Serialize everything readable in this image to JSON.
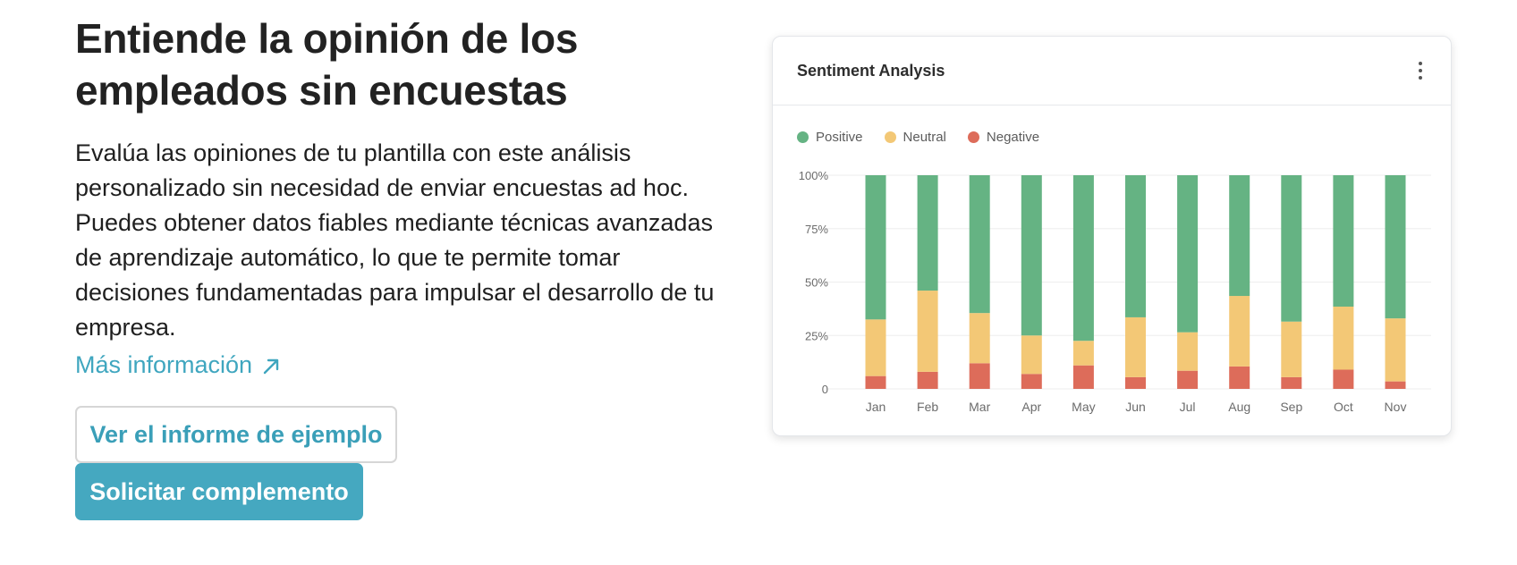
{
  "hero": {
    "title_line1": "Entiende la opinión de los",
    "title_line2": "empleados sin encuestas",
    "description": "Evalúa las opiniones de tu plantilla con este análisis personalizado sin necesidad de enviar encuestas ad hoc. Puedes obtener datos fiables mediante técnicas avanzadas de aprendizaje automático, lo que te permite tomar decisiones fundamentadas para impulsar el desarrollo de tu empresa.",
    "more_link": "Más información",
    "secondary_button": "Ver el informe de ejemplo",
    "primary_button": "Solicitar complemento"
  },
  "card": {
    "title": "Sentiment Analysis",
    "menu_icon": "kebab-menu-icon"
  },
  "colors": {
    "accent": "#45a8c0",
    "positive": "#65b383",
    "neutral": "#f3c876",
    "negative": "#dd6c5a"
  },
  "chart_data": {
    "type": "bar",
    "stacked": true,
    "title": "Sentiment Analysis",
    "categories": [
      "Jan",
      "Feb",
      "Mar",
      "Apr",
      "May",
      "Jun",
      "Jul",
      "Aug",
      "Sep",
      "Oct",
      "Nov"
    ],
    "series": [
      {
        "name": "Negative",
        "color": "#dd6c5a",
        "values": [
          6,
          8,
          12,
          7,
          11,
          5.5,
          8.5,
          10.5,
          5.5,
          9,
          3.5
        ]
      },
      {
        "name": "Neutral",
        "color": "#f3c876",
        "values": [
          26.5,
          38,
          23.5,
          18,
          11.5,
          28,
          18,
          33,
          26,
          29.5,
          29.5
        ]
      },
      {
        "name": "Positive",
        "color": "#65b383",
        "values": [
          67.5,
          54,
          64.5,
          75,
          77.5,
          66.5,
          73.5,
          56.5,
          68.5,
          61.5,
          67
        ]
      }
    ],
    "legend": [
      "Positive",
      "Neutral",
      "Negative"
    ],
    "yticks": [
      "0",
      "25%",
      "50%",
      "75%",
      "100%"
    ],
    "ylim": [
      0,
      100
    ],
    "grid": true,
    "legend_position": "top-left"
  }
}
